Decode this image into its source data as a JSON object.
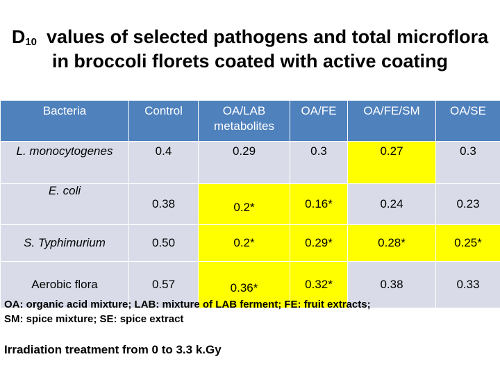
{
  "title": {
    "d_main": "D",
    "d_sub": "10",
    "line1_rest": "values of selected pathogens and total microflora",
    "line2": "in broccoli florets coated with active coating"
  },
  "table": {
    "headers": [
      "Bacteria",
      "Control",
      "OA/LAB metabolites",
      "OA/FE",
      "OA/FE/SM",
      "OA/SE"
    ],
    "rows": [
      {
        "bacteria": "L. monocytogenes",
        "control": "0.4",
        "oa_lab": "0.29",
        "oa_fe": "0.3",
        "oa_fe_sm": "0.27",
        "oa_se": "0.3"
      },
      {
        "bacteria": "E. coli",
        "control": "0.38",
        "oa_lab": "0.2*",
        "oa_fe": "0.16*",
        "oa_fe_sm": "0.24",
        "oa_se": "0.23"
      },
      {
        "bacteria": "S. Typhimurium",
        "control": "0.50",
        "oa_lab": "0.2*",
        "oa_fe": "0.29*",
        "oa_fe_sm": "0.28*",
        "oa_se": "0.25*"
      },
      {
        "bacteria": "Aerobic flora",
        "control": "0.57",
        "oa_lab": "0.36*",
        "oa_fe": "0.32*",
        "oa_fe_sm": "0.38",
        "oa_se": "0.33"
      }
    ],
    "header_color": "#4f81bd",
    "cell_color": "#d9dce8",
    "highlight_color": "#ffff00"
  },
  "footnote": {
    "line1": "OA: organic acid mixture; LAB: mixture of LAB ferment; FE: fruit extracts;",
    "line2": "SM: spice mixture; SE: spice extract"
  },
  "irradiation": "Irradiation treatment from 0 to 3.3 k.Gy"
}
